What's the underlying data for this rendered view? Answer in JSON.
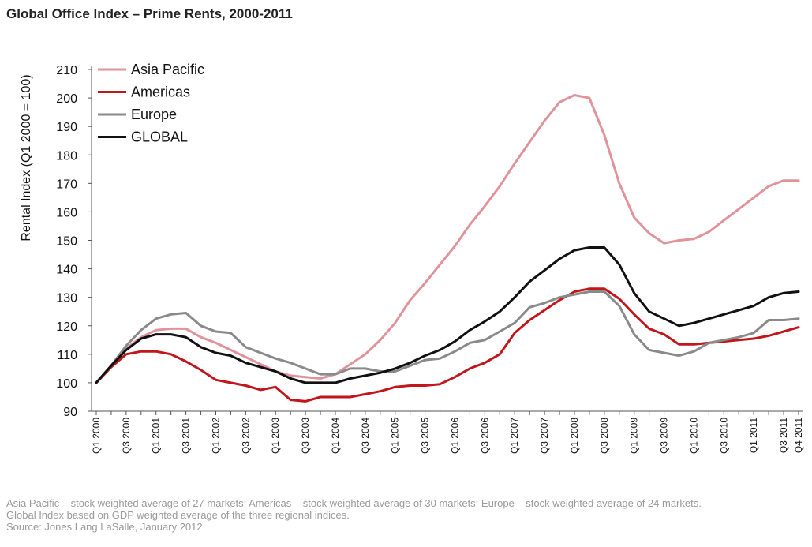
{
  "page_title": "Global Office Index – Prime Rents, 2000-2011",
  "footnote": {
    "line1": "Asia Pacific – stock weighted average of 27 markets; Americas – stock weighted average of 30 markets: Europe – stock weighted average of 24 markets.",
    "line2": "Global Index based on GDP weighted average of the three regional indices.",
    "line3": "Source: Jones Lang LaSalle, January 2012"
  },
  "chart_data": {
    "type": "line",
    "title": "Global Office Index – Prime Rents, 2000-2011",
    "xlabel": "",
    "ylabel": "Rental Index (Q1 2000 = 100)",
    "ylim": [
      90,
      210
    ],
    "yticks": [
      90,
      100,
      110,
      120,
      130,
      140,
      150,
      160,
      170,
      180,
      190,
      200,
      210
    ],
    "grid": false,
    "legend_position": "top-left",
    "x_tick_labels": [
      "Q1 2000",
      "Q3 2000",
      "Q1 2001",
      "Q3 2001",
      "Q1 2002",
      "Q3 2002",
      "Q1 2003",
      "Q3 2003",
      "Q1 2004",
      "Q3 2004",
      "Q1 2005",
      "Q3 2005",
      "Q1 2006",
      "Q3 2006",
      "Q1 2007",
      "Q3 2007",
      "Q1 2008",
      "Q3 2008",
      "Q1 2009",
      "Q3 2009",
      "Q1 2010",
      "Q3 2010",
      "Q1 2011",
      "Q3 2011",
      "Q4 2011"
    ],
    "x": [
      "Q1 2000",
      "Q2 2000",
      "Q3 2000",
      "Q4 2000",
      "Q1 2001",
      "Q2 2001",
      "Q3 2001",
      "Q4 2001",
      "Q1 2002",
      "Q2 2002",
      "Q3 2002",
      "Q4 2002",
      "Q1 2003",
      "Q2 2003",
      "Q3 2003",
      "Q4 2003",
      "Q1 2004",
      "Q2 2004",
      "Q3 2004",
      "Q4 2004",
      "Q1 2005",
      "Q2 2005",
      "Q3 2005",
      "Q4 2005",
      "Q1 2006",
      "Q2 2006",
      "Q3 2006",
      "Q4 2006",
      "Q1 2007",
      "Q2 2007",
      "Q3 2007",
      "Q4 2007",
      "Q1 2008",
      "Q2 2008",
      "Q3 2008",
      "Q4 2008",
      "Q1 2009",
      "Q2 2009",
      "Q3 2009",
      "Q4 2009",
      "Q1 2010",
      "Q2 2010",
      "Q3 2010",
      "Q4 2010",
      "Q1 2011",
      "Q2 2011",
      "Q3 2011",
      "Q4 2011"
    ],
    "series": [
      {
        "name": "Asia Pacific",
        "color": "#e0939a",
        "values": [
          100,
          106,
          112,
          116,
          118.5,
          119,
          119,
          116,
          114,
          111.5,
          109,
          106.5,
          104,
          102.5,
          102,
          101.5,
          103,
          106.5,
          110,
          115,
          121,
          129,
          135,
          141.5,
          148,
          155.5,
          162,
          169,
          177,
          184.5,
          192,
          198.5,
          201,
          200,
          187,
          170,
          158,
          152.5,
          149,
          150,
          150.5,
          153,
          157,
          161,
          165,
          169,
          171,
          171
        ]
      },
      {
        "name": "Americas",
        "color": "#c0161c",
        "values": [
          100,
          105.5,
          110,
          111,
          111,
          110,
          107.5,
          104.5,
          101,
          100,
          99,
          97.5,
          98.5,
          94,
          93.5,
          95,
          95,
          95,
          96,
          97,
          98.5,
          99,
          99,
          99.5,
          102,
          105,
          107,
          110,
          117.5,
          122,
          125.5,
          129,
          132,
          133,
          133,
          129.5,
          124,
          119,
          117,
          113.5,
          113.5,
          114,
          114.5,
          115,
          115.5,
          116.5,
          118,
          119.5
        ]
      },
      {
        "name": "Europe",
        "color": "#8a8a8a",
        "values": [
          100,
          106,
          113,
          118.5,
          122.5,
          124,
          124.5,
          120,
          118,
          117.5,
          112.5,
          110.5,
          108.5,
          107,
          105,
          103,
          103,
          105,
          105,
          104,
          104,
          106,
          108,
          108.5,
          111,
          114,
          115,
          118,
          121,
          126.5,
          128,
          130,
          131,
          132,
          132,
          127,
          117,
          111.5,
          110.5,
          109.5,
          111,
          114,
          115,
          116,
          117.5,
          122,
          122,
          122.5
        ]
      },
      {
        "name": "GLOBAL",
        "color": "#111111",
        "values": [
          100,
          106,
          111.5,
          115.5,
          117,
          117,
          116,
          112.5,
          110.5,
          109.5,
          107,
          105.5,
          104,
          101.5,
          100,
          100,
          100,
          101.5,
          102.5,
          103.5,
          105,
          107,
          109.5,
          111.5,
          114.5,
          118.5,
          121.5,
          125,
          130,
          135.5,
          139.5,
          143.5,
          146.5,
          147.5,
          147.5,
          141.5,
          131.5,
          125,
          122.5,
          120,
          121,
          122.5,
          124,
          125.5,
          127,
          130,
          131.5,
          132
        ]
      }
    ]
  }
}
